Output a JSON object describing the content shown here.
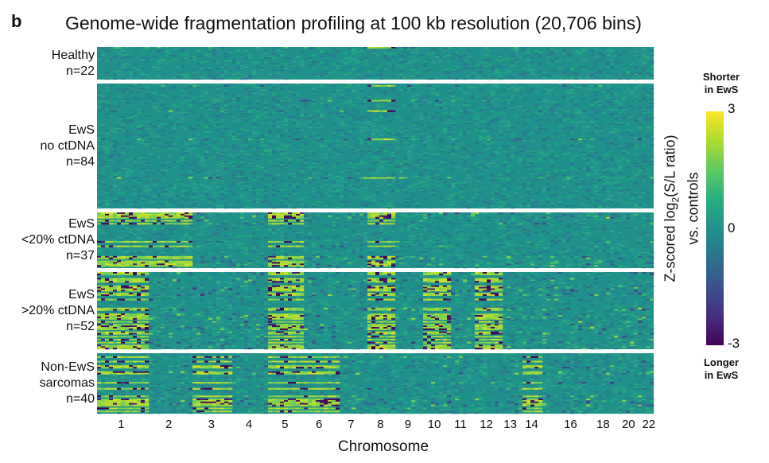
{
  "panel_letter": "b",
  "chart_data": {
    "type": "heatmap",
    "title": "Genome-wide fragmentation profiling at 100 kb resolution (20,706 bins)",
    "xlabel": "Chromosome",
    "x_tick_labels": [
      "1",
      "2",
      "3",
      "4",
      "5",
      "6",
      "7",
      "8",
      "9",
      "10",
      "11",
      "12",
      "13",
      "14",
      "16",
      "18",
      "20",
      "22"
    ],
    "chromosomes": [
      "1",
      "2",
      "3",
      "4",
      "5",
      "6",
      "7",
      "8",
      "9",
      "10",
      "11",
      "12",
      "13",
      "14",
      "15",
      "16",
      "17",
      "18",
      "19",
      "20",
      "21",
      "22"
    ],
    "chromosome_relative_lengths": [
      249,
      242,
      198,
      190,
      181,
      171,
      159,
      145,
      138,
      134,
      135,
      133,
      114,
      107,
      102,
      90,
      83,
      80,
      59,
      64,
      47,
      51
    ],
    "groups": [
      {
        "lines": [
          "Healthy",
          "n=22"
        ],
        "n": 22
      },
      {
        "lines": [
          "EwS",
          "no ctDNA",
          "n=84"
        ],
        "n": 84
      },
      {
        "lines": [
          "EwS",
          "<20% ctDNA",
          "n=37"
        ],
        "n": 37
      },
      {
        "lines": [
          "EwS",
          ">20% ctDNA",
          "n=52"
        ],
        "n": 52
      },
      {
        "lines": [
          "Non-EwS",
          "sarcomas",
          "n=40"
        ],
        "n": 40
      }
    ],
    "colorbar": {
      "range": [
        -3,
        3
      ],
      "ticks": [
        "3",
        "0",
        "-3"
      ],
      "top_label": [
        "Shorter",
        "in EwS"
      ],
      "bottom_label": [
        "Longer",
        "in EwS"
      ],
      "title_line1": "Z-scored log",
      "title_sub": "2",
      "title_rest": "(S/L ratio)",
      "title_line2": "vs. controls",
      "colormap": "viridis"
    }
  }
}
